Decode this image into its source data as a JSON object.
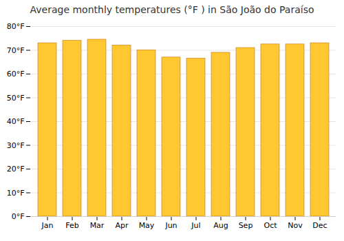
{
  "chart_data": {
    "type": "bar",
    "title": "Average monthly temperatures (°F ) in São João do Paraíso",
    "categories": [
      "Jan",
      "Feb",
      "Mar",
      "Apr",
      "May",
      "Jun",
      "Jul",
      "Aug",
      "Sep",
      "Oct",
      "Nov",
      "Dec"
    ],
    "values": [
      73,
      74,
      74.5,
      72,
      70,
      67,
      66.5,
      69,
      71,
      72.5,
      72.5,
      73
    ],
    "color": "#FFC830",
    "ylim": [
      0,
      80
    ],
    "yticks": [
      {
        "value": 0,
        "label": "0°F"
      },
      {
        "value": 10,
        "label": "10°F"
      },
      {
        "value": 20,
        "label": "20°F"
      },
      {
        "value": 30,
        "label": "30°F"
      },
      {
        "value": 40,
        "label": "40°F"
      },
      {
        "value": 50,
        "label": "50°F"
      },
      {
        "value": 60,
        "label": "60°F"
      },
      {
        "value": 70,
        "label": "70°F"
      },
      {
        "value": 80,
        "label": "80°F"
      }
    ],
    "grid": true
  }
}
